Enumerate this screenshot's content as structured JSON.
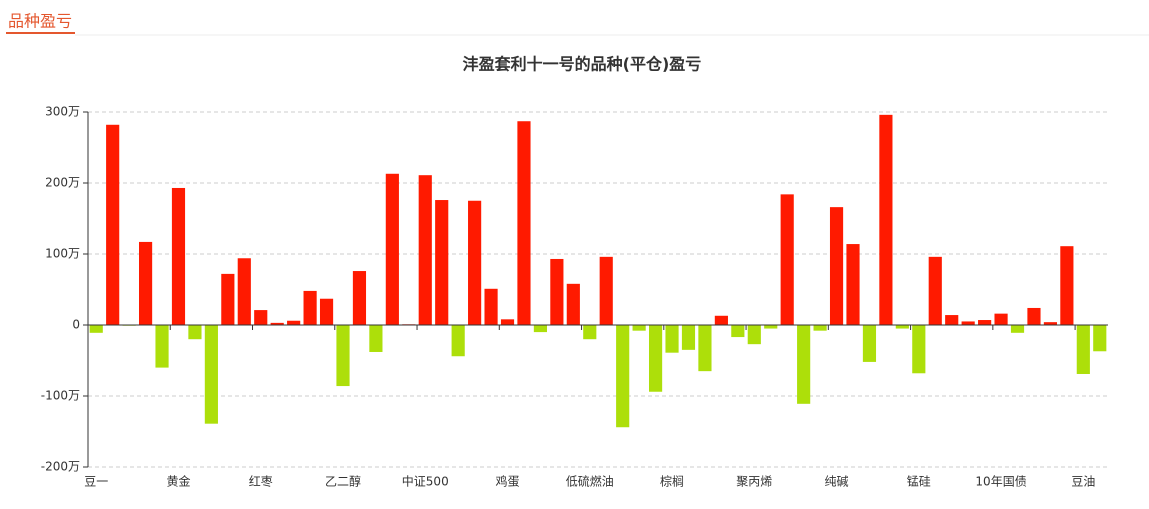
{
  "header": {
    "title": "品种盈亏"
  },
  "chart_data": {
    "type": "bar",
    "title": "沣盈套利十一号的品种(平仓)盈亏",
    "categories": [
      "豆一",
      null,
      null,
      null,
      null,
      "黄金",
      null,
      null,
      null,
      null,
      "红枣",
      null,
      null,
      null,
      null,
      "乙二醇",
      null,
      null,
      null,
      null,
      "中证500",
      null,
      null,
      null,
      null,
      "鸡蛋",
      null,
      null,
      null,
      null,
      "低硫燃油",
      null,
      null,
      null,
      null,
      "棕榈",
      null,
      null,
      null,
      null,
      "聚丙烯",
      null,
      null,
      null,
      null,
      "纯碱",
      null,
      null,
      null,
      null,
      "锰硅",
      null,
      null,
      null,
      null,
      "10年国债",
      null,
      null,
      null,
      null,
      "豆油",
      null
    ],
    "values": [
      -11,
      282,
      -1,
      117,
      -60,
      193,
      -20,
      -139,
      72,
      94,
      21,
      3,
      6,
      48,
      37,
      -86,
      76,
      -38,
      213,
      1,
      211,
      176,
      -44,
      175,
      51,
      8,
      287,
      -10,
      93,
      58,
      -20,
      96,
      -144,
      -8,
      -94,
      -39,
      -35,
      -65,
      13,
      -17,
      -27,
      -5,
      184,
      -111,
      -8,
      166,
      114,
      -52,
      296,
      -5,
      -68,
      96,
      14,
      5,
      7,
      16,
      -11,
      24,
      4,
      111,
      -69,
      -37
    ],
    "positive_color": "#ff1a00",
    "negative_color": "#addf0a",
    "ylim": [
      -200,
      300
    ],
    "yticks": [
      {
        "value": -200,
        "label": "-200万"
      },
      {
        "value": -100,
        "label": "-100万"
      },
      0,
      {
        "value": 100,
        "label": "100万"
      },
      {
        "value": 200,
        "label": "200万"
      },
      {
        "value": 300,
        "label": "300万"
      }
    ],
    "grid": true
  }
}
